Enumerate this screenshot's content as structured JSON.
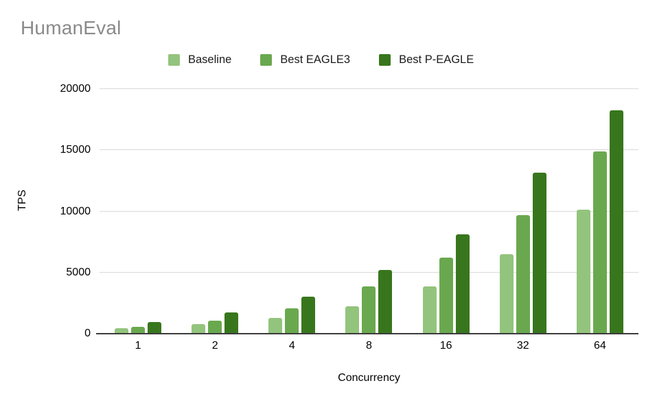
{
  "title": "HumanEval",
  "colors": {
    "title_text": "#8a8a8a",
    "gridline": "#d9d9d9",
    "axis_line": "#3b3b3b",
    "baseline_series": "#93c47d",
    "eagle3_series": "#6aa84f",
    "p_eagle_series": "#38761d"
  },
  "chart_data": {
    "type": "bar",
    "title": "HumanEval",
    "categories": [
      "1",
      "2",
      "4",
      "8",
      "16",
      "32",
      "64"
    ],
    "series": [
      {
        "name": "Baseline",
        "color": "#93c47d",
        "values": [
          450,
          780,
          1290,
          2240,
          3850,
          6490,
          10150
        ]
      },
      {
        "name": "Best EAGLE3",
        "color": "#6aa84f",
        "values": [
          550,
          1080,
          2070,
          3860,
          6230,
          9680,
          14930
        ]
      },
      {
        "name": "Best P-EAGLE",
        "color": "#38761d",
        "values": [
          930,
          1720,
          3020,
          5210,
          8150,
          13170,
          18290
        ]
      }
    ],
    "xlabel": "Concurrency",
    "ylabel": "TPS",
    "ylim": [
      0,
      20000
    ],
    "yticks": [
      0,
      5000,
      10000,
      15000,
      20000
    ],
    "grid": true,
    "legend_position": "top"
  }
}
